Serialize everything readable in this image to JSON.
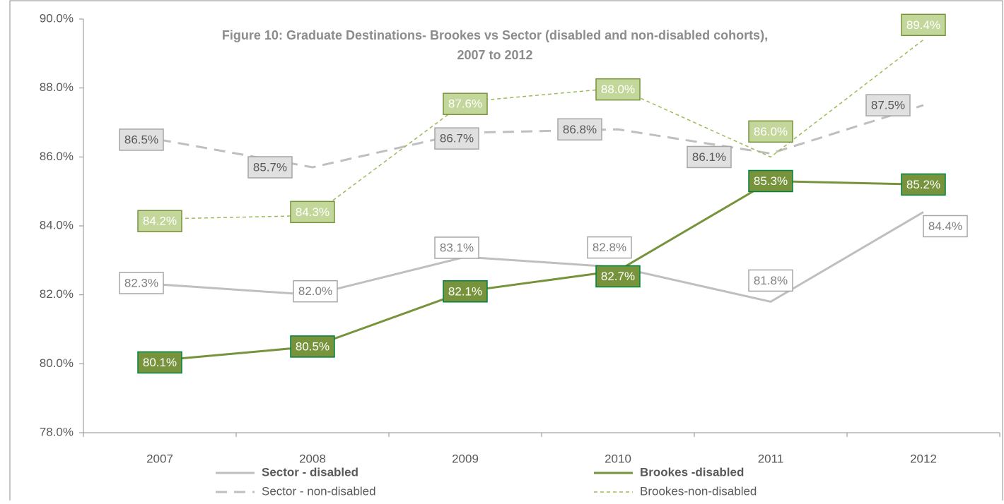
{
  "chart_data": {
    "type": "line",
    "title": [
      "Figure 10: Graduate Destinations- Brookes vs Sector (disabled and non-disabled cohorts),",
      "2007 to 2012"
    ],
    "categories": [
      "2007",
      "2008",
      "2009",
      "2010",
      "2011",
      "2012"
    ],
    "ylim": [
      78,
      90
    ],
    "yticks": [
      {
        "value": 78,
        "label": "78.0%"
      },
      {
        "value": 80,
        "label": "80.0%"
      },
      {
        "value": 82,
        "label": "82.0%"
      },
      {
        "value": 84,
        "label": "84.0%"
      },
      {
        "value": 86,
        "label": "86.0%"
      },
      {
        "value": 88,
        "label": "88.0%"
      },
      {
        "value": 90,
        "label": "90.0%"
      }
    ],
    "series": [
      {
        "name": "Sector - disabled",
        "color": "#bfbfbf",
        "values": [
          82.3,
          82.0,
          83.1,
          82.8,
          81.8,
          84.4
        ],
        "value_labels": [
          "82.3%",
          "82.0%",
          "83.1%",
          "82.8%",
          "81.8%",
          "84.4%"
        ]
      },
      {
        "name": "Brookes -disabled",
        "color": "#77933c",
        "values": [
          80.1,
          80.5,
          82.1,
          82.7,
          85.3,
          85.2
        ],
        "value_labels": [
          "80.1%",
          "80.5%",
          "82.1%",
          "82.7%",
          "85.3%",
          "85.2%"
        ]
      },
      {
        "name": "Sector - non-disabled",
        "color": "#bfbfbf",
        "values": [
          86.5,
          85.7,
          86.7,
          86.8,
          86.1,
          87.5
        ],
        "value_labels": [
          "86.5%",
          "85.7%",
          "86.7%",
          "86.8%",
          "86.1%",
          "87.5%"
        ]
      },
      {
        "name": "Brookes-non-disabled",
        "color": "#9bbb59",
        "values": [
          84.2,
          84.3,
          87.6,
          88.0,
          86.0,
          89.4
        ],
        "value_labels": [
          "84.2%",
          "84.3%",
          "87.6%",
          "88.0%",
          "86.0%",
          "89.4%"
        ]
      }
    ]
  }
}
